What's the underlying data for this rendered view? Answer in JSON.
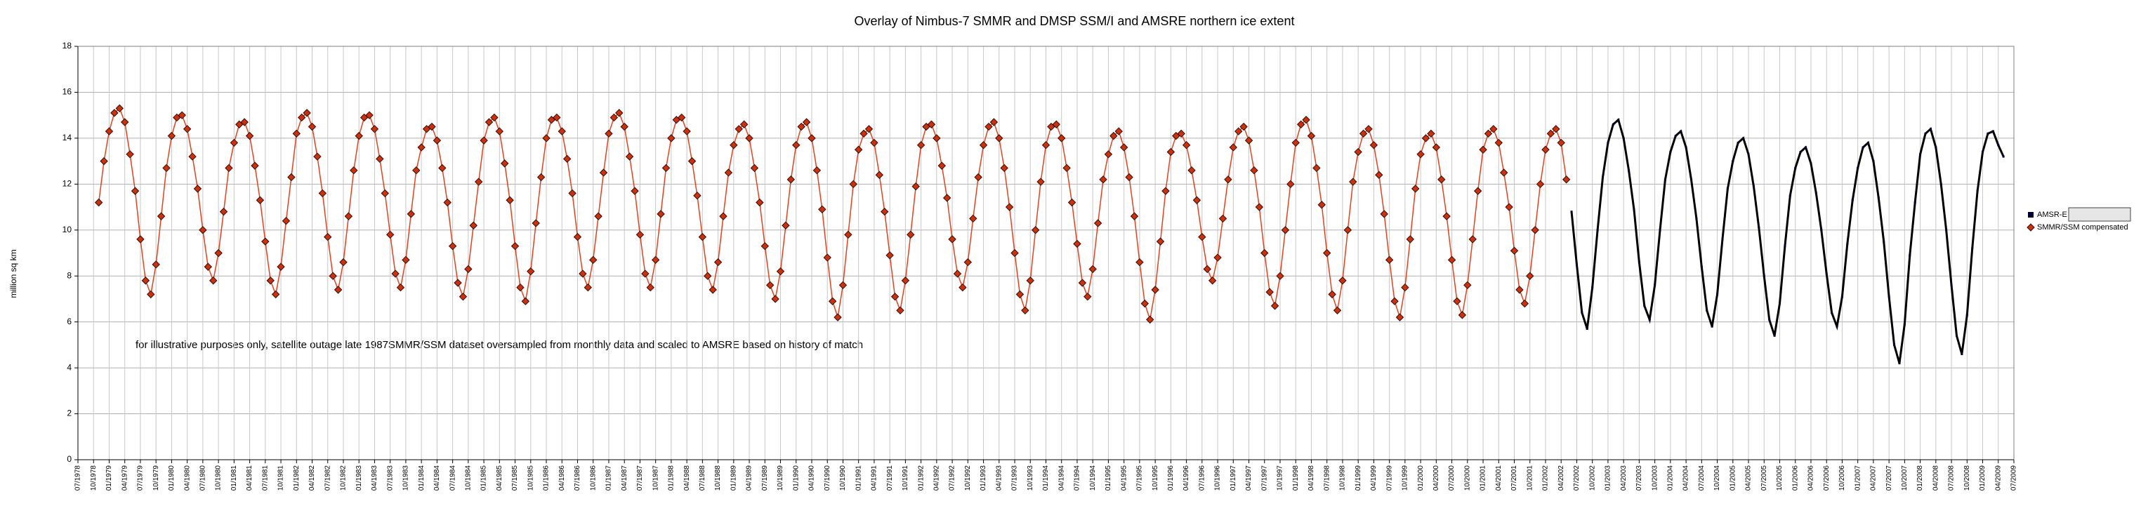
{
  "chart_data": {
    "type": "line",
    "title": "Overlay of Nimbus-7 SMMR and DMSP SSM/I and AMSRE northern ice extent",
    "y_label": "million sq km",
    "annotation": "for illustrative purposes only, satellite outage late 1987SMMR/SSM dataset oversampled from monthly data and scaled to AMSRE based on history of match",
    "ylim": [
      0,
      18
    ],
    "yticks": [
      0,
      2,
      4,
      6,
      8,
      10,
      12,
      14,
      16,
      18
    ],
    "xlim": [
      "07/1978",
      "07/2009"
    ],
    "xticks": [
      "07/1978",
      "10/1978",
      "01/1979",
      "04/1979",
      "07/1979",
      "10/1979",
      "01/1980",
      "04/1980",
      "07/1980",
      "10/1980",
      "01/1981",
      "04/1981",
      "07/1981",
      "10/1981",
      "01/1982",
      "04/1982",
      "07/1982",
      "10/1982",
      "01/1983",
      "04/1983",
      "07/1983",
      "10/1983",
      "01/1984",
      "04/1984",
      "07/1984",
      "10/1984",
      "01/1985",
      "04/1985",
      "07/1985",
      "10/1985",
      "01/1986",
      "04/1986",
      "07/1986",
      "10/1986",
      "01/1987",
      "04/1987",
      "07/1987",
      "10/1987",
      "01/1988",
      "04/1988",
      "07/1988",
      "10/1988",
      "01/1989",
      "04/1989",
      "07/1989",
      "10/1989",
      "01/1990",
      "04/1990",
      "07/1990",
      "10/1990",
      "01/1991",
      "04/1991",
      "07/1991",
      "10/1991",
      "01/1992",
      "04/1992",
      "07/1992",
      "10/1992",
      "01/1993",
      "04/1993",
      "07/1993",
      "10/1993",
      "01/1994",
      "04/1994",
      "07/1994",
      "10/1994",
      "01/1995",
      "04/1995",
      "07/1995",
      "10/1995",
      "01/1996",
      "04/1996",
      "07/1996",
      "10/1996",
      "01/1997",
      "04/1997",
      "07/1997",
      "10/1997",
      "01/1998",
      "04/1998",
      "07/1998",
      "10/1998",
      "01/1999",
      "04/1999",
      "07/1999",
      "10/1999",
      "01/2000",
      "04/2000",
      "07/2000",
      "10/2000",
      "01/2001",
      "04/2001",
      "07/2001",
      "10/2001",
      "01/2002",
      "04/2002",
      "07/2002",
      "10/2002",
      "01/2003",
      "04/2003",
      "07/2003",
      "10/2003",
      "01/2004",
      "04/2004",
      "07/2004",
      "10/2004",
      "01/2005",
      "04/2005",
      "07/2005",
      "10/2005",
      "01/2006",
      "04/2006",
      "07/2006",
      "10/2006",
      "01/2007",
      "04/2007",
      "07/2007",
      "10/2007",
      "01/2008",
      "04/2008",
      "07/2008",
      "10/2008",
      "01/2009",
      "04/2009",
      "07/2009"
    ],
    "grid": true,
    "legend": "right",
    "series": [
      {
        "name": "AMSR-E",
        "color": "#000000",
        "x": [
          "06/2002",
          "07/2002",
          "08/2002",
          "09/2002",
          "10/2002",
          "11/2002",
          "12/2002",
          "01/2003",
          "02/2003",
          "03/2003",
          "04/2003",
          "05/2003",
          "06/2003",
          "07/2003",
          "08/2003",
          "09/2003",
          "10/2003",
          "11/2003",
          "12/2003",
          "01/2004",
          "02/2004",
          "03/2004",
          "04/2004",
          "05/2004",
          "06/2004",
          "07/2004",
          "08/2004",
          "09/2004",
          "10/2004",
          "11/2004",
          "12/2004",
          "01/2005",
          "02/2005",
          "03/2005",
          "04/2005",
          "05/2005",
          "06/2005",
          "07/2005",
          "08/2005",
          "09/2005",
          "10/2005",
          "11/2005",
          "12/2005",
          "01/2006",
          "02/2006",
          "03/2006",
          "04/2006",
          "05/2006",
          "06/2006",
          "07/2006",
          "08/2006",
          "09/2006",
          "10/2006",
          "11/2006",
          "12/2006",
          "01/2007",
          "02/2007",
          "03/2007",
          "04/2007",
          "05/2007",
          "06/2007",
          "07/2007",
          "08/2007",
          "09/2007",
          "10/2007",
          "11/2007",
          "12/2007",
          "01/2008",
          "02/2008",
          "03/2008",
          "04/2008",
          "05/2008",
          "06/2008",
          "07/2008",
          "08/2008",
          "09/2008",
          "10/2008",
          "11/2008",
          "12/2008",
          "01/2009",
          "02/2009",
          "03/2009",
          "04/2009",
          "05/2009"
        ],
        "values": [
          10.8,
          8.5,
          6.4,
          5.7,
          7.5,
          10.0,
          12.3,
          13.8,
          14.6,
          14.8,
          14.0,
          12.6,
          10.9,
          8.6,
          6.7,
          6.1,
          7.6,
          10.0,
          12.2,
          13.4,
          14.1,
          14.3,
          13.6,
          12.2,
          10.5,
          8.4,
          6.5,
          5.8,
          7.2,
          9.6,
          11.8,
          13.0,
          13.8,
          14.0,
          13.3,
          11.9,
          10.1,
          8.0,
          6.1,
          5.4,
          6.8,
          9.3,
          11.5,
          12.7,
          13.4,
          13.6,
          12.9,
          11.6,
          10.0,
          8.1,
          6.4,
          5.8,
          7.1,
          9.4,
          11.3,
          12.7,
          13.6,
          13.8,
          13.0,
          11.4,
          9.5,
          7.1,
          5.0,
          4.2,
          5.9,
          8.9,
          11.2,
          13.3,
          14.2,
          14.4,
          13.6,
          12.0,
          10.0,
          7.6,
          5.4,
          4.6,
          6.3,
          9.2,
          11.7,
          13.4,
          14.2,
          14.3,
          13.7,
          13.2
        ]
      },
      {
        "name": "SMMR/SSM compensated",
        "color": "#e8401c",
        "x": [
          "11/1978",
          "12/1978",
          "01/1979",
          "02/1979",
          "03/1979",
          "04/1979",
          "05/1979",
          "06/1979",
          "07/1979",
          "08/1979",
          "09/1979",
          "10/1979",
          "11/1979",
          "12/1979",
          "01/1980",
          "02/1980",
          "03/1980",
          "04/1980",
          "05/1980",
          "06/1980",
          "07/1980",
          "08/1980",
          "09/1980",
          "10/1980",
          "11/1980",
          "12/1980",
          "01/1981",
          "02/1981",
          "03/1981",
          "04/1981",
          "05/1981",
          "06/1981",
          "07/1981",
          "08/1981",
          "09/1981",
          "10/1981",
          "11/1981",
          "12/1981",
          "01/1982",
          "02/1982",
          "03/1982",
          "04/1982",
          "05/1982",
          "06/1982",
          "07/1982",
          "08/1982",
          "09/1982",
          "10/1982",
          "11/1982",
          "12/1982",
          "01/1983",
          "02/1983",
          "03/1983",
          "04/1983",
          "05/1983",
          "06/1983",
          "07/1983",
          "08/1983",
          "09/1983",
          "10/1983",
          "11/1983",
          "12/1983",
          "01/1984",
          "02/1984",
          "03/1984",
          "04/1984",
          "05/1984",
          "06/1984",
          "07/1984",
          "08/1984",
          "09/1984",
          "10/1984",
          "11/1984",
          "12/1984",
          "01/1985",
          "02/1985",
          "03/1985",
          "04/1985",
          "05/1985",
          "06/1985",
          "07/1985",
          "08/1985",
          "09/1985",
          "10/1985",
          "11/1985",
          "12/1985",
          "01/1986",
          "02/1986",
          "03/1986",
          "04/1986",
          "05/1986",
          "06/1986",
          "07/1986",
          "08/1986",
          "09/1986",
          "10/1986",
          "11/1986",
          "12/1986",
          "01/1987",
          "02/1987",
          "03/1987",
          "04/1987",
          "05/1987",
          "06/1987",
          "07/1987",
          "08/1987",
          "09/1987",
          "10/1987",
          "11/1987",
          "12/1987",
          "01/1988",
          "02/1988",
          "03/1988",
          "04/1988",
          "05/1988",
          "06/1988",
          "07/1988",
          "08/1988",
          "09/1988",
          "10/1988",
          "11/1988",
          "12/1988",
          "01/1989",
          "02/1989",
          "03/1989",
          "04/1989",
          "05/1989",
          "06/1989",
          "07/1989",
          "08/1989",
          "09/1989",
          "10/1989",
          "11/1989",
          "12/1989",
          "01/1990",
          "02/1990",
          "03/1990",
          "04/1990",
          "05/1990",
          "06/1990",
          "07/1990",
          "08/1990",
          "09/1990",
          "10/1990",
          "11/1990",
          "12/1990",
          "01/1991",
          "02/1991",
          "03/1991",
          "04/1991",
          "05/1991",
          "06/1991",
          "07/1991",
          "08/1991",
          "09/1991",
          "10/1991",
          "11/1991",
          "12/1991",
          "01/1992",
          "02/1992",
          "03/1992",
          "04/1992",
          "05/1992",
          "06/1992",
          "07/1992",
          "08/1992",
          "09/1992",
          "10/1992",
          "11/1992",
          "12/1992",
          "01/1993",
          "02/1993",
          "03/1993",
          "04/1993",
          "05/1993",
          "06/1993",
          "07/1993",
          "08/1993",
          "09/1993",
          "10/1993",
          "11/1993",
          "12/1993",
          "01/1994",
          "02/1994",
          "03/1994",
          "04/1994",
          "05/1994",
          "06/1994",
          "07/1994",
          "08/1994",
          "09/1994",
          "10/1994",
          "11/1994",
          "12/1994",
          "01/1995",
          "02/1995",
          "03/1995",
          "04/1995",
          "05/1995",
          "06/1995",
          "07/1995",
          "08/1995",
          "09/1995",
          "10/1995",
          "11/1995",
          "12/1995",
          "01/1996",
          "02/1996",
          "03/1996",
          "04/1996",
          "05/1996",
          "06/1996",
          "07/1996",
          "08/1996",
          "09/1996",
          "10/1996",
          "11/1996",
          "12/1996",
          "01/1997",
          "02/1997",
          "03/1997",
          "04/1997",
          "05/1997",
          "06/1997",
          "07/1997",
          "08/1997",
          "09/1997",
          "10/1997",
          "11/1997",
          "12/1997",
          "01/1998",
          "02/1998",
          "03/1998",
          "04/1998",
          "05/1998",
          "06/1998",
          "07/1998",
          "08/1998",
          "09/1998",
          "10/1998",
          "11/1998",
          "12/1998",
          "01/1999",
          "02/1999",
          "03/1999",
          "04/1999",
          "05/1999",
          "06/1999",
          "07/1999",
          "08/1999",
          "09/1999",
          "10/1999",
          "11/1999",
          "12/1999",
          "01/2000",
          "02/2000",
          "03/2000",
          "04/2000",
          "05/2000",
          "06/2000",
          "07/2000",
          "08/2000",
          "09/2000",
          "10/2000",
          "11/2000",
          "12/2000",
          "01/2001",
          "02/2001",
          "03/2001",
          "04/2001",
          "05/2001",
          "06/2001",
          "07/2001",
          "08/2001",
          "09/2001",
          "10/2001",
          "11/2001",
          "12/2001",
          "01/2002",
          "02/2002",
          "03/2002",
          "04/2002",
          "05/2002"
        ],
        "values": [
          11.2,
          13.0,
          14.3,
          15.1,
          15.3,
          14.7,
          13.3,
          11.7,
          9.6,
          7.8,
          7.2,
          8.5,
          10.6,
          12.7,
          14.1,
          14.9,
          15.0,
          14.4,
          13.2,
          11.8,
          10.0,
          8.4,
          7.8,
          9.0,
          10.8,
          12.7,
          13.8,
          14.6,
          14.7,
          14.1,
          12.8,
          11.3,
          9.5,
          7.8,
          7.2,
          8.4,
          10.4,
          12.3,
          14.2,
          14.9,
          15.1,
          14.5,
          13.2,
          11.6,
          9.7,
          8.0,
          7.4,
          8.6,
          10.6,
          12.6,
          14.1,
          14.9,
          15.0,
          14.4,
          13.1,
          11.6,
          9.8,
          8.1,
          7.5,
          8.7,
          10.7,
          12.6,
          13.6,
          14.4,
          14.5,
          13.9,
          12.7,
          11.2,
          9.3,
          7.7,
          7.1,
          8.3,
          10.2,
          12.1,
          13.9,
          14.7,
          14.9,
          14.3,
          12.9,
          11.3,
          9.3,
          7.5,
          6.9,
          8.2,
          10.3,
          12.3,
          14.0,
          14.8,
          14.9,
          14.3,
          13.1,
          11.6,
          9.7,
          8.1,
          7.5,
          8.7,
          10.6,
          12.5,
          14.2,
          14.9,
          15.1,
          14.5,
          13.2,
          11.7,
          9.8,
          8.1,
          7.5,
          8.7,
          10.7,
          12.7,
          14.0,
          14.8,
          14.9,
          14.3,
          13.0,
          11.5,
          9.7,
          8.0,
          7.4,
          8.6,
          10.6,
          12.5,
          13.7,
          14.4,
          14.6,
          14.0,
          12.7,
          11.2,
          9.3,
          7.6,
          7.0,
          8.2,
          10.2,
          12.2,
          13.7,
          14.5,
          14.7,
          14.0,
          12.6,
          10.9,
          8.8,
          6.9,
          6.2,
          7.6,
          9.8,
          12.0,
          13.5,
          14.2,
          14.4,
          13.8,
          12.4,
          10.8,
          8.9,
          7.1,
          6.5,
          7.8,
          9.8,
          11.9,
          13.7,
          14.5,
          14.6,
          14.0,
          12.8,
          11.4,
          9.6,
          8.1,
          7.5,
          8.6,
          10.5,
          12.3,
          13.7,
          14.5,
          14.7,
          14.0,
          12.7,
          11.0,
          9.0,
          7.2,
          6.5,
          7.8,
          10.0,
          12.1,
          13.7,
          14.5,
          14.6,
          14.0,
          12.7,
          11.2,
          9.4,
          7.7,
          7.1,
          8.3,
          10.3,
          12.2,
          13.3,
          14.1,
          14.3,
          13.6,
          12.3,
          10.6,
          8.6,
          6.8,
          6.1,
          7.4,
          9.5,
          11.7,
          13.4,
          14.1,
          14.2,
          13.7,
          12.6,
          11.3,
          9.7,
          8.3,
          7.8,
          8.8,
          10.5,
          12.2,
          13.6,
          14.3,
          14.5,
          13.9,
          12.6,
          11.0,
          9.0,
          7.3,
          6.7,
          8.0,
          10.0,
          12.0,
          13.8,
          14.6,
          14.8,
          14.1,
          12.7,
          11.1,
          9.0,
          7.2,
          6.5,
          7.8,
          10.0,
          12.1,
          13.4,
          14.2,
          14.4,
          13.7,
          12.4,
          10.7,
          8.7,
          6.9,
          6.2,
          7.5,
          9.6,
          11.8,
          13.3,
          14.0,
          14.2,
          13.6,
          12.2,
          10.6,
          8.7,
          6.9,
          6.3,
          7.6,
          9.6,
          11.7,
          13.5,
          14.2,
          14.4,
          13.8,
          12.5,
          11.0,
          9.1,
          7.4,
          6.8,
          8.0,
          10.0,
          12.0,
          13.5,
          14.2,
          14.4,
          13.8,
          12.2
        ]
      }
    ]
  }
}
